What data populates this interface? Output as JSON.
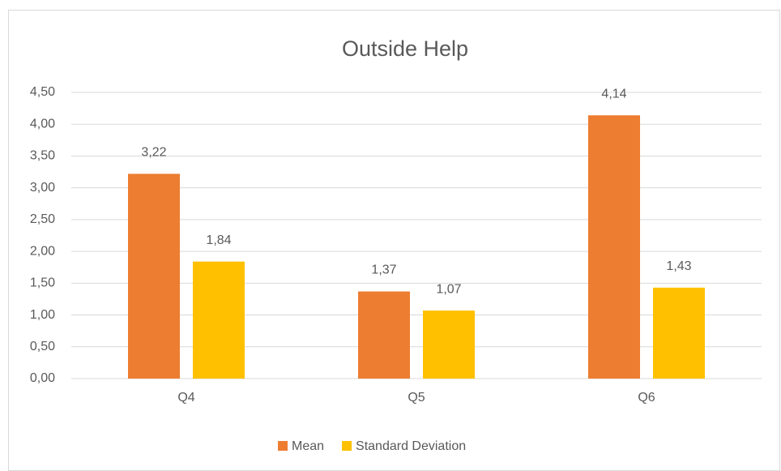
{
  "chart_data": {
    "type": "bar",
    "title": "Outside Help",
    "categories": [
      "Q4",
      "Q5",
      "Q6"
    ],
    "series": [
      {
        "name": "Mean",
        "color": "#ed7d31",
        "values": [
          3.22,
          1.37,
          4.14
        ],
        "value_labels": [
          "3,22",
          "1,37",
          "4,14"
        ]
      },
      {
        "name": "Standard Deviation",
        "color": "#ffc000",
        "values": [
          1.84,
          1.07,
          1.43
        ],
        "value_labels": [
          "1,84",
          "1,07",
          "1,43"
        ]
      }
    ],
    "ylim": [
      0,
      4.5
    ],
    "yticks": [
      {
        "value": 0,
        "label": "0,00"
      },
      {
        "value": 0.5,
        "label": "0,50"
      },
      {
        "value": 1,
        "label": "1,00"
      },
      {
        "value": 1.5,
        "label": "1,50"
      },
      {
        "value": 2,
        "label": "2,00"
      },
      {
        "value": 2.5,
        "label": "2,50"
      },
      {
        "value": 3,
        "label": "3,00"
      },
      {
        "value": 3.5,
        "label": "3,50"
      },
      {
        "value": 4,
        "label": "4,00"
      },
      {
        "value": 4.5,
        "label": "4,50"
      }
    ],
    "grid": true,
    "legend": "bottom"
  }
}
